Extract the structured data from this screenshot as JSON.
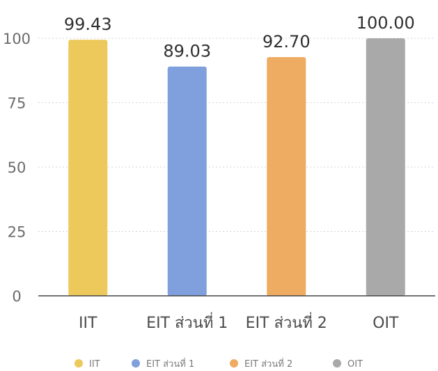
{
  "chart_data": {
    "type": "bar",
    "categories": [
      "IIT",
      "EIT ส่วนที่ 1",
      "EIT ส่วนที่ 2",
      "OIT"
    ],
    "values": [
      99.43,
      89.03,
      92.7,
      100.0
    ],
    "value_labels": [
      "99.43",
      "89.03",
      "92.70",
      "100.00"
    ],
    "colors": [
      "#ecc95a",
      "#7fa0dc",
      "#eeab62",
      "#a9a9a9"
    ],
    "ylim": [
      0,
      100
    ],
    "yticks": [
      0,
      25,
      50,
      75,
      100
    ],
    "grid": true,
    "legend_position": "bottom"
  }
}
